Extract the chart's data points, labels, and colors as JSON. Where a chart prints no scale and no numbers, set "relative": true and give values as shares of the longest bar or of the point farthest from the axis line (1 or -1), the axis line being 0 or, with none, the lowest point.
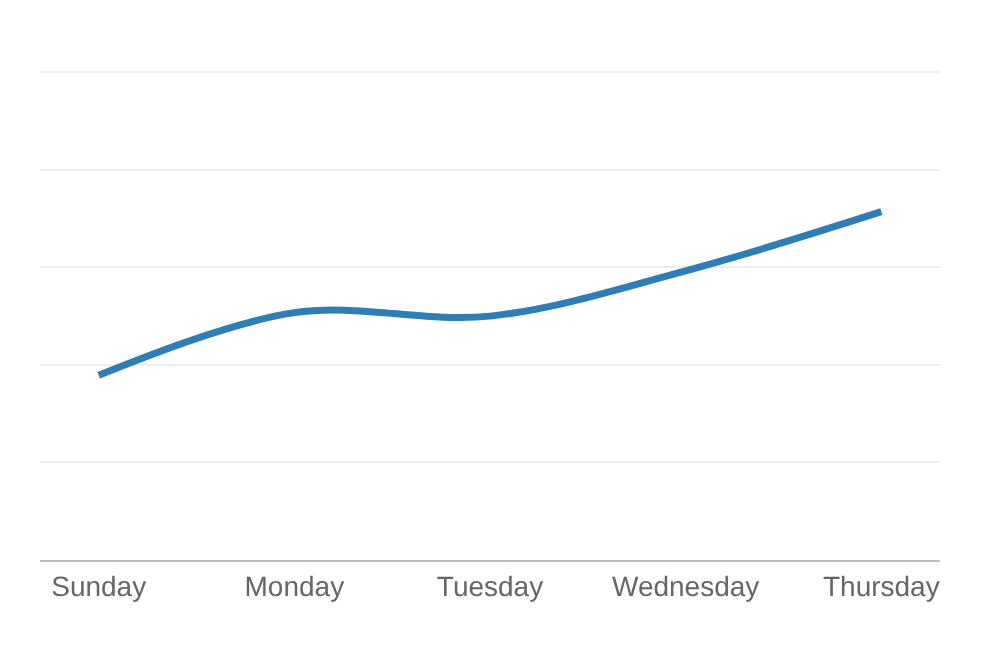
{
  "chart_data": {
    "type": "line",
    "relative": true,
    "categories": [
      "Sunday",
      "Monday",
      "Tuesday",
      "Wednesday",
      "Thursday"
    ],
    "series": [
      {
        "color": "#2e7db5",
        "values": [
          0.53,
          0.71,
          0.7,
          0.83,
          1
        ]
      }
    ],
    "grid": "y",
    "marker": "none",
    "line_style": "solid"
  }
}
